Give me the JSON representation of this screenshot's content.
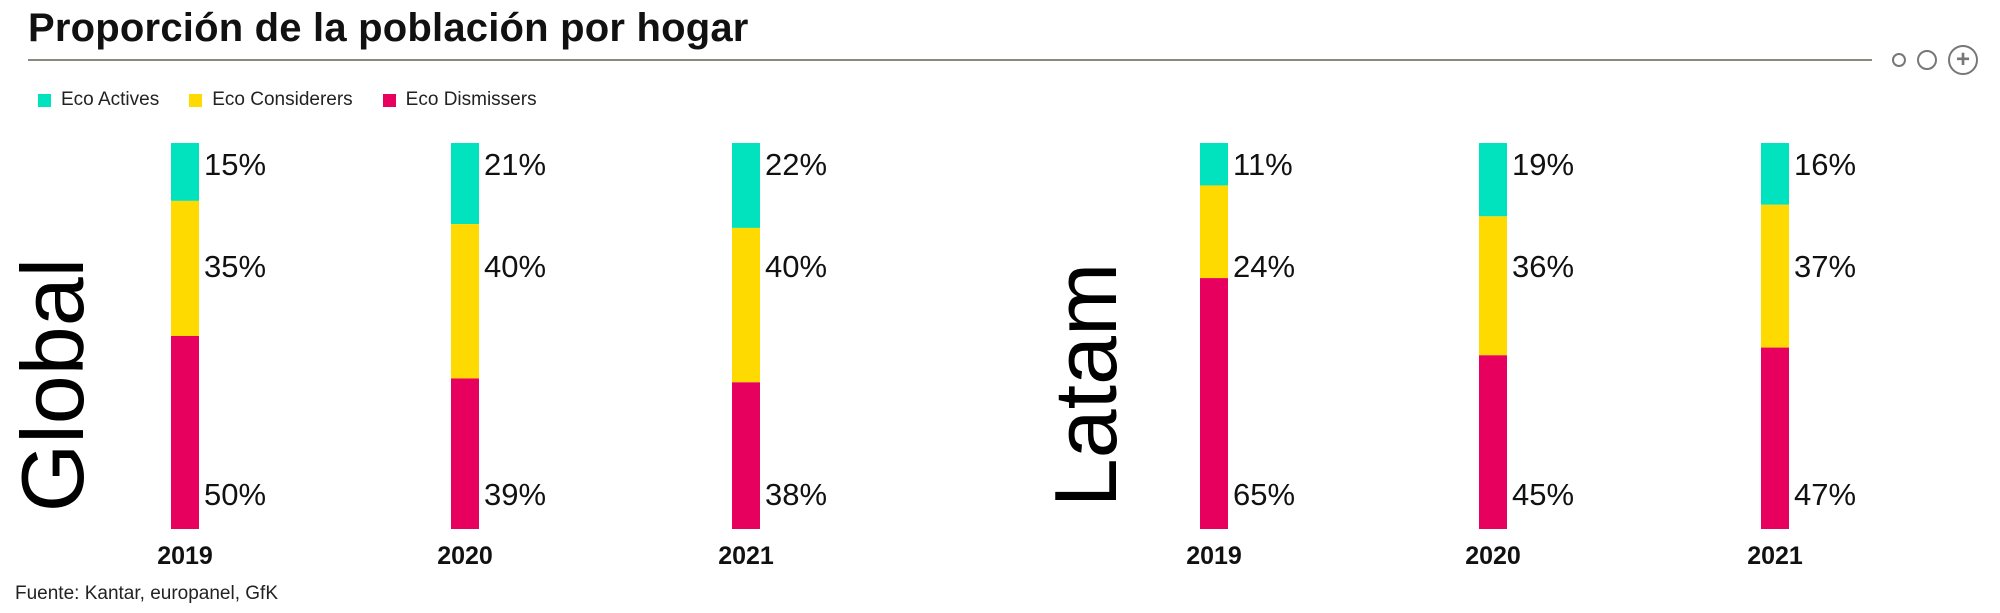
{
  "title": "Proporción de la población por hogar",
  "source": "Fuente: Kantar, europanel, GfK",
  "controls": [
    {
      "icon": "small-circle-icon"
    },
    {
      "icon": "circle-icon"
    },
    {
      "icon": "plus-circle-icon",
      "glyph": "+"
    }
  ],
  "colors": {
    "eco_actives": "#00E3BE",
    "eco_considerers": "#FFDA00",
    "eco_dismissers": "#E8005F"
  },
  "chart_data": {
    "type": "bar",
    "stacked": true,
    "orientation": "vertical",
    "legend_position": "top-left",
    "series_names": [
      "Eco Actives",
      "Eco Considerers",
      "Eco Dismissers"
    ],
    "groups": [
      {
        "label": "Global",
        "categories": [
          "2019",
          "2020",
          "2021"
        ],
        "series": [
          {
            "name": "Eco Actives",
            "values": [
              15,
              21,
              22
            ],
            "labels": [
              "15%",
              "21%",
              "22%"
            ]
          },
          {
            "name": "Eco Considerers",
            "values": [
              35,
              40,
              40
            ],
            "labels": [
              "35%",
              "40%",
              "40%"
            ]
          },
          {
            "name": "Eco Dismissers",
            "values": [
              50,
              39,
              38
            ],
            "labels": [
              "50%",
              "39%",
              "38%"
            ]
          }
        ]
      },
      {
        "label": "Latam",
        "categories": [
          "2019",
          "2020",
          "2021"
        ],
        "series": [
          {
            "name": "Eco Actives",
            "values": [
              11,
              19,
              16
            ],
            "labels": [
              "11%",
              "19%",
              "16%"
            ]
          },
          {
            "name": "Eco Considerers",
            "values": [
              24,
              36,
              37
            ],
            "labels": [
              "24%",
              "36%",
              "37%"
            ]
          },
          {
            "name": "Eco Dismissers",
            "values": [
              65,
              45,
              47
            ],
            "labels": [
              "65%",
              "45%",
              "47%"
            ]
          }
        ]
      }
    ]
  }
}
